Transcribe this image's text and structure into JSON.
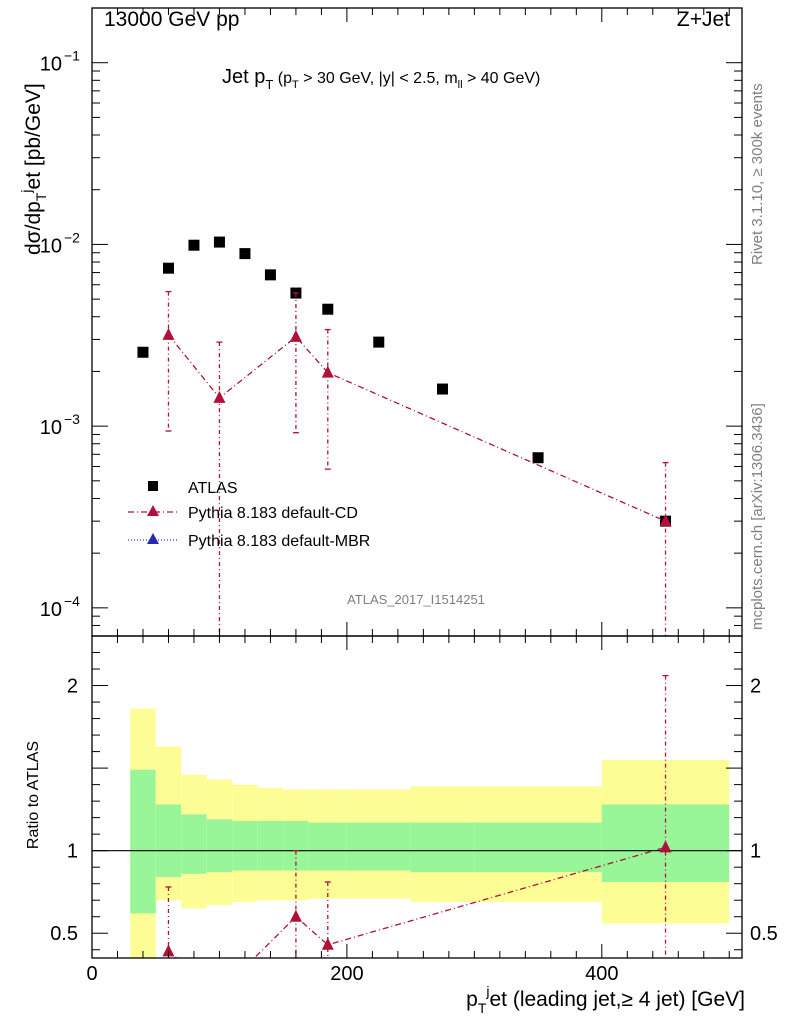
{
  "header": {
    "left": "13000 GeV pp",
    "right": "Z+Jet"
  },
  "side_labels": {
    "rivet": "Rivet 3.1.10, ≥ 300k events",
    "mcplots": "mcplots.cern.ch [arXiv:1306.3436]"
  },
  "colors": {
    "atlas": "#000000",
    "pythia_cd": "#b0103a",
    "pythia_mbr": "#2a2ab0",
    "band_inner": "#98f598",
    "band_outer": "#fdfd96"
  },
  "chart_data": [
    {
      "type": "scatter",
      "panel": "main",
      "title": "Jet p_T (p_T > 30 GeV, |y| < 2.5, m_ll > 40 GeV)",
      "ylabel": "dσ/dp_T^j et [pb/GeV]",
      "yscale": "log",
      "ylim": [
        7e-05,
        0.2
      ],
      "xlim": [
        0,
        510
      ],
      "watermark": "ATLAS_2017_I1514251",
      "legend": {
        "placement": "lower-left",
        "entries": [
          "ATLAS",
          "Pythia 8.183 default-CD",
          "Pythia 8.183 default-MBR"
        ]
      },
      "yticks": [
        {
          "v": 0.0001,
          "base": "10",
          "exp": "−4"
        },
        {
          "v": 0.001,
          "base": "10",
          "exp": "−3"
        },
        {
          "v": 0.01,
          "base": "10",
          "exp": "−2"
        },
        {
          "v": 0.1,
          "base": "10",
          "exp": "−1"
        }
      ],
      "series": [
        {
          "name": "ATLAS",
          "marker": "square",
          "x": [
            40,
            60,
            80,
            100,
            120,
            140,
            160,
            185,
            225,
            275,
            350,
            450
          ],
          "y": [
            0.00255,
            0.0074,
            0.0099,
            0.0103,
            0.0089,
            0.0068,
            0.0054,
            0.0044,
            0.0029,
            0.0016,
            0.00067,
            0.0003
          ]
        },
        {
          "name": "Pythia 8.183 default-CD",
          "marker": "triangle",
          "line": "dash-dot",
          "x": [
            60,
            100,
            160,
            185,
            450
          ],
          "y": [
            0.00318,
            0.00143,
            0.0031,
            0.00197,
            0.0003
          ],
          "yerr_low": [
            0.00094,
            7e-05,
            0.00092,
            0.00058,
            7e-05
          ],
          "yerr_high": [
            0.0055,
            0.0029,
            0.0054,
            0.0034,
            0.00063
          ]
        },
        {
          "name": "Pythia 8.183 default-MBR",
          "marker": "triangle",
          "line": "dotted",
          "x": [],
          "y": []
        }
      ]
    },
    {
      "type": "area",
      "panel": "ratio",
      "ylabel": "Ratio to ATLAS",
      "xlabel": "p_T^j et (leading jet,≥ 4 jet) [GeV]",
      "xlim": [
        0,
        510
      ],
      "ylim": [
        0.35,
        2.3
      ],
      "xticks": [
        0,
        200,
        400
      ],
      "yticks": [
        0.5,
        1,
        2
      ],
      "bins": [
        [
          30,
          50
        ],
        [
          50,
          70
        ],
        [
          70,
          90
        ],
        [
          90,
          110
        ],
        [
          110,
          130
        ],
        [
          130,
          150
        ],
        [
          150,
          170
        ],
        [
          170,
          200
        ],
        [
          200,
          250
        ],
        [
          250,
          300
        ],
        [
          300,
          400
        ],
        [
          400,
          500
        ]
      ],
      "band_inner": [
        [
          0.62,
          1.49
        ],
        [
          0.84,
          1.28
        ],
        [
          0.86,
          1.22
        ],
        [
          0.87,
          1.19
        ],
        [
          0.88,
          1.18
        ],
        [
          0.88,
          1.18
        ],
        [
          0.88,
          1.18
        ],
        [
          0.88,
          1.17
        ],
        [
          0.88,
          1.17
        ],
        [
          0.87,
          1.17
        ],
        [
          0.87,
          1.17
        ],
        [
          0.81,
          1.28
        ]
      ],
      "band_outer": [
        [
          0.31,
          1.86
        ],
        [
          0.7,
          1.63
        ],
        [
          0.65,
          1.46
        ],
        [
          0.67,
          1.43
        ],
        [
          0.69,
          1.4
        ],
        [
          0.7,
          1.38
        ],
        [
          0.7,
          1.37
        ],
        [
          0.71,
          1.37
        ],
        [
          0.71,
          1.37
        ],
        [
          0.69,
          1.39
        ],
        [
          0.69,
          1.39
        ],
        [
          0.56,
          1.55
        ]
      ],
      "series": [
        {
          "name": "Pythia 8.183 default-CD",
          "x": [
            60,
            100,
            160,
            185,
            450
          ],
          "y": [
            0.39,
            0.14,
            0.6,
            0.43,
            1.02
          ],
          "yerr_low": [
            0.1,
            0.01,
            0.18,
            0.13,
            0.1
          ],
          "yerr_high": [
            0.78,
            0.3,
            1.0,
            0.81,
            2.06
          ]
        }
      ]
    }
  ]
}
